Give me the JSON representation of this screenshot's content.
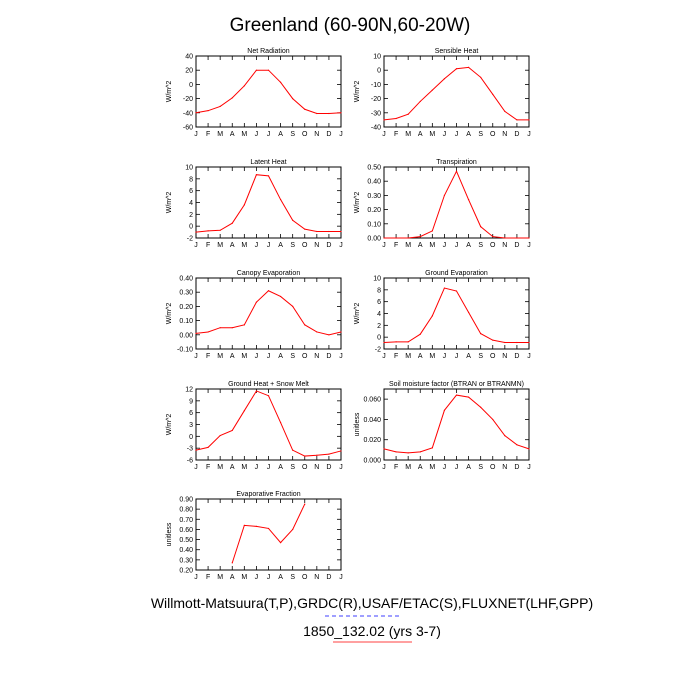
{
  "figure": {
    "title": "Greenland (60-90N,60-20W)",
    "footer_line1": "Willmott-Matsuura(T,P),GRDC(R),USAF/ETAC(S),FLUXNET(LHF,GPP)",
    "footer_line2": "1850_132.02 (yrs 3-7)"
  },
  "colors": {
    "series": "#ff0000",
    "axes": "#000000",
    "underline_red": "#ff0000",
    "underline_blue": "#0000ff"
  },
  "chart_data": [
    {
      "type": "line",
      "title": "Net Radiation",
      "ylabel": "W/m^2",
      "categories": [
        "J",
        "F",
        "M",
        "A",
        "M",
        "J",
        "J",
        "A",
        "S",
        "O",
        "N",
        "D",
        "J"
      ],
      "ylim": [
        -60,
        40
      ],
      "yticks": [
        40,
        20,
        0,
        -20,
        -40,
        -60
      ],
      "ytick_labels": [
        "40",
        "20",
        "0",
        "-20",
        "-40",
        "-60"
      ],
      "x": [
        1,
        2,
        3,
        4,
        5,
        6,
        7,
        8,
        9,
        10,
        11,
        12,
        13
      ],
      "values": [
        -40,
        -37,
        -31,
        -19,
        -2,
        20,
        20,
        3,
        -20,
        -35,
        -41,
        -41,
        -40
      ]
    },
    {
      "type": "line",
      "title": "Sensible Heat",
      "ylabel": "W/m^2",
      "categories": [
        "J",
        "F",
        "M",
        "A",
        "M",
        "J",
        "J",
        "A",
        "S",
        "O",
        "N",
        "D",
        "J"
      ],
      "ylim": [
        -40,
        10
      ],
      "yticks": [
        10,
        0,
        -10,
        -20,
        -30,
        -40
      ],
      "ytick_labels": [
        "10",
        "0",
        "-10",
        "-20",
        "-30",
        "-40"
      ],
      "x": [
        1,
        2,
        3,
        4,
        5,
        6,
        7,
        8,
        9,
        10,
        11,
        12,
        13
      ],
      "values": [
        -35,
        -34,
        -31,
        -22,
        -14,
        -6,
        1,
        2,
        -5,
        -17,
        -29,
        -35,
        -35
      ]
    },
    {
      "type": "line",
      "title": "Latent Heat",
      "ylabel": "W/m^2",
      "categories": [
        "J",
        "F",
        "M",
        "A",
        "M",
        "J",
        "J",
        "A",
        "S",
        "O",
        "N",
        "D",
        "J"
      ],
      "ylim": [
        -2,
        10
      ],
      "yticks": [
        10,
        8,
        6,
        4,
        2,
        0,
        -2
      ],
      "ytick_labels": [
        "10",
        "8",
        "6",
        "4",
        "2",
        "0",
        "-2"
      ],
      "x": [
        1,
        2,
        3,
        4,
        5,
        6,
        7,
        8,
        9,
        10,
        11,
        12,
        13
      ],
      "values": [
        -1,
        -0.8,
        -0.7,
        0.5,
        3.6,
        8.7,
        8.5,
        4.5,
        1,
        -0.5,
        -0.9,
        -0.9,
        -0.9
      ]
    },
    {
      "type": "line",
      "title": "Transpiration",
      "ylabel": "W/m^2",
      "categories": [
        "J",
        "F",
        "M",
        "A",
        "M",
        "J",
        "J",
        "A",
        "S",
        "O",
        "N",
        "D",
        "J"
      ],
      "ylim": [
        0,
        0.5
      ],
      "yticks": [
        0.5,
        0.4,
        0.3,
        0.2,
        0.1,
        0.0
      ],
      "ytick_labels": [
        "0.50",
        "0.40",
        "0.30",
        "0.20",
        "0.10",
        "0.00"
      ],
      "x": [
        1,
        2,
        3,
        4,
        5,
        6,
        7,
        8,
        9,
        10,
        11,
        12,
        13
      ],
      "values": [
        0,
        0,
        0,
        0.01,
        0.05,
        0.3,
        0.47,
        0.27,
        0.08,
        0.01,
        0,
        0,
        0
      ]
    },
    {
      "type": "line",
      "title": "Canopy Evaporation",
      "ylabel": "W/m^2",
      "categories": [
        "J",
        "F",
        "M",
        "A",
        "M",
        "J",
        "J",
        "A",
        "S",
        "O",
        "N",
        "D",
        "J"
      ],
      "ylim": [
        -0.1,
        0.4
      ],
      "yticks": [
        0.4,
        0.3,
        0.2,
        0.1,
        0.0,
        -0.1
      ],
      "ytick_labels": [
        "0.40",
        "0.30",
        "0.20",
        "0.10",
        "0.00",
        "-0.10"
      ],
      "x": [
        1,
        2,
        3,
        4,
        5,
        6,
        7,
        8,
        9,
        10,
        11,
        12,
        13
      ],
      "values": [
        0.01,
        0.02,
        0.05,
        0.05,
        0.07,
        0.23,
        0.31,
        0.27,
        0.2,
        0.07,
        0.02,
        0,
        0.02
      ]
    },
    {
      "type": "line",
      "title": "Ground Evaporation",
      "ylabel": "W/m^2",
      "categories": [
        "J",
        "F",
        "M",
        "A",
        "M",
        "J",
        "J",
        "A",
        "S",
        "O",
        "N",
        "D",
        "J"
      ],
      "ylim": [
        -2,
        10
      ],
      "yticks": [
        10,
        8,
        6,
        4,
        2,
        0,
        -2
      ],
      "ytick_labels": [
        "10",
        "8",
        "6",
        "4",
        "2",
        "0",
        "-2"
      ],
      "x": [
        1,
        2,
        3,
        4,
        5,
        6,
        7,
        8,
        9,
        10,
        11,
        12,
        13
      ],
      "values": [
        -0.9,
        -0.8,
        -0.8,
        0.5,
        3.6,
        8.3,
        7.8,
        4.2,
        0.6,
        -0.5,
        -0.9,
        -0.9,
        -0.9
      ]
    },
    {
      "type": "line",
      "title": "Ground Heat + Snow Melt",
      "ylabel": "W/m^2",
      "categories": [
        "J",
        "F",
        "M",
        "A",
        "M",
        "J",
        "J",
        "A",
        "S",
        "O",
        "N",
        "D",
        "J"
      ],
      "ylim": [
        -6,
        12
      ],
      "yticks": [
        12,
        9,
        6,
        3,
        0,
        -3,
        -6
      ],
      "ytick_labels": [
        "12",
        "9",
        "6",
        "3",
        "0",
        "-3",
        "-6"
      ],
      "x": [
        1,
        2,
        3,
        4,
        5,
        6,
        7,
        8,
        9,
        10,
        11,
        12,
        13
      ],
      "values": [
        -3.5,
        -2.8,
        0.2,
        1.5,
        6.5,
        11.5,
        10.3,
        3.5,
        -3.5,
        -5,
        -4.8,
        -4.5,
        -3.7
      ]
    },
    {
      "type": "line",
      "title": "Soil moisture factor (BTRAN or BTRANMN)",
      "ylabel": "unitless",
      "categories": [
        "J",
        "F",
        "M",
        "A",
        "M",
        "J",
        "J",
        "A",
        "S",
        "O",
        "N",
        "D",
        "J"
      ],
      "ylim": [
        0,
        0.07
      ],
      "yticks": [
        0.06,
        0.04,
        0.02,
        0.0
      ],
      "ytick_labels": [
        "0.060",
        "0.040",
        "0.020",
        "0.000"
      ],
      "x": [
        1,
        2,
        3,
        4,
        5,
        6,
        7,
        8,
        9,
        10,
        11,
        12,
        13
      ],
      "values": [
        0.011,
        0.008,
        0.007,
        0.008,
        0.012,
        0.049,
        0.064,
        0.062,
        0.052,
        0.04,
        0.024,
        0.015,
        0.011
      ]
    },
    {
      "type": "line",
      "title": "Evaporative Fraction",
      "ylabel": "unitless",
      "categories": [
        "J",
        "F",
        "M",
        "A",
        "M",
        "J",
        "J",
        "A",
        "S",
        "O",
        "N",
        "D",
        "J"
      ],
      "ylim": [
        0.2,
        0.9
      ],
      "yticks": [
        0.9,
        0.8,
        0.7,
        0.6,
        0.5,
        0.4,
        0.3,
        0.2
      ],
      "ytick_labels": [
        "0.90",
        "0.80",
        "0.70",
        "0.60",
        "0.50",
        "0.40",
        "0.30",
        "0.20"
      ],
      "x": [
        1,
        2,
        3,
        4,
        5,
        6,
        7,
        8,
        9,
        10,
        11,
        12,
        13
      ],
      "values": [
        null,
        null,
        null,
        0.27,
        0.64,
        0.63,
        0.61,
        0.47,
        0.6,
        0.85,
        null,
        null,
        null
      ]
    }
  ]
}
